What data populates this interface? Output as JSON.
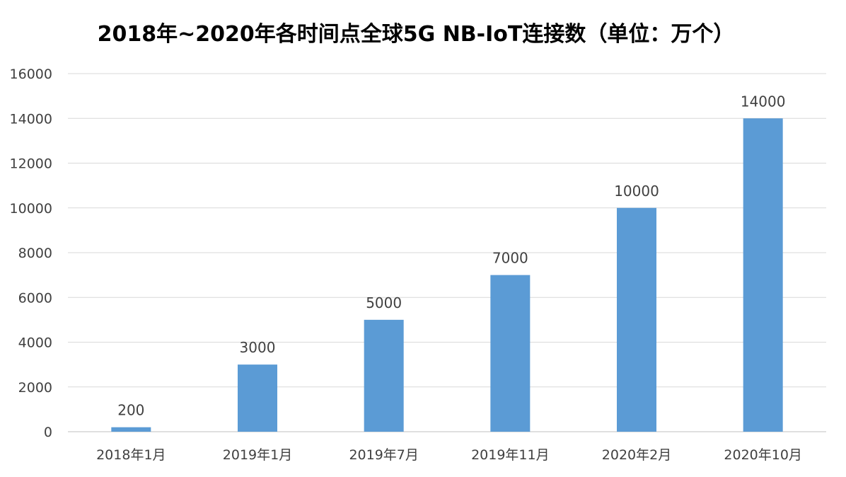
{
  "chart_data": {
    "type": "bar",
    "title": "2018年~2020年各时间点全球5G NB-IoT连接数（单位：万个）",
    "categories": [
      "2018年1月",
      "2019年1月",
      "2019年7月",
      "2019年11月",
      "2020年2月",
      "2020年10月"
    ],
    "series": [
      {
        "name": "连接数",
        "values": [
          200,
          3000,
          5000,
          7000,
          10000,
          14000
        ],
        "color": "#5b9bd5"
      }
    ],
    "ylim": [
      0,
      16000
    ],
    "yticks": [
      0,
      2000,
      4000,
      6000,
      8000,
      10000,
      12000,
      14000,
      16000
    ],
    "grid": true,
    "legend": "none",
    "xlabel": "",
    "ylabel": ""
  }
}
